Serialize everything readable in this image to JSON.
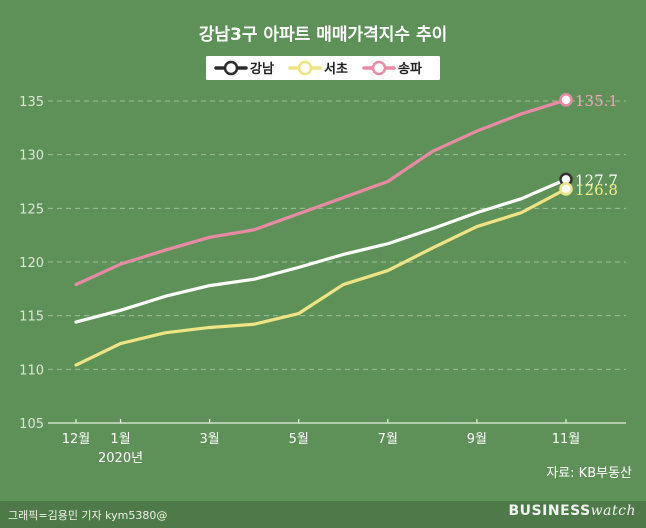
{
  "chart_data": {
    "type": "line",
    "title": "강남3구 아파트 매매가격지수 추이",
    "x_ticks": [
      {
        "index": 0,
        "label": "12월",
        "sub": ""
      },
      {
        "index": 1,
        "label": "1월",
        "sub": "2020년"
      },
      {
        "index": 3,
        "label": "3월",
        "sub": ""
      },
      {
        "index": 5,
        "label": "5월",
        "sub": ""
      },
      {
        "index": 7,
        "label": "7월",
        "sub": ""
      },
      {
        "index": 9,
        "label": "9월",
        "sub": ""
      },
      {
        "index": 11,
        "label": "11월",
        "sub": ""
      }
    ],
    "x_count": 12,
    "ylim": [
      105,
      135
    ],
    "y_ticks": [
      105,
      110,
      115,
      120,
      125,
      130,
      135
    ],
    "grid": true,
    "legend_position": "top-center",
    "series": [
      {
        "name": "강남",
        "color": "#ffffff",
        "values": [
          114.4,
          115.5,
          116.8,
          117.8,
          118.4,
          119.5,
          120.7,
          121.7,
          123.1,
          124.6,
          125.9,
          127.7
        ],
        "end_label": "127.7",
        "label_color": "#ffffff"
      },
      {
        "name": "서초",
        "color": "#eee484",
        "values": [
          110.4,
          112.4,
          113.4,
          113.9,
          114.2,
          115.2,
          117.9,
          119.2,
          121.3,
          123.3,
          124.6,
          126.8
        ],
        "end_label": "126.8",
        "label_color": "#f2ea8c"
      },
      {
        "name": "송파",
        "color": "#e98aa5",
        "values": [
          117.9,
          119.8,
          121.1,
          122.3,
          123.0,
          124.5,
          126.0,
          127.5,
          130.3,
          132.2,
          133.8,
          135.1
        ],
        "end_label": "135.1",
        "label_color": "#f2a5bb"
      }
    ]
  },
  "source": "자료: KB부동산",
  "credit": "그래픽=김용민 기자 kym5380@",
  "brand": {
    "bold": "BUSINESS",
    "light": "watch"
  }
}
